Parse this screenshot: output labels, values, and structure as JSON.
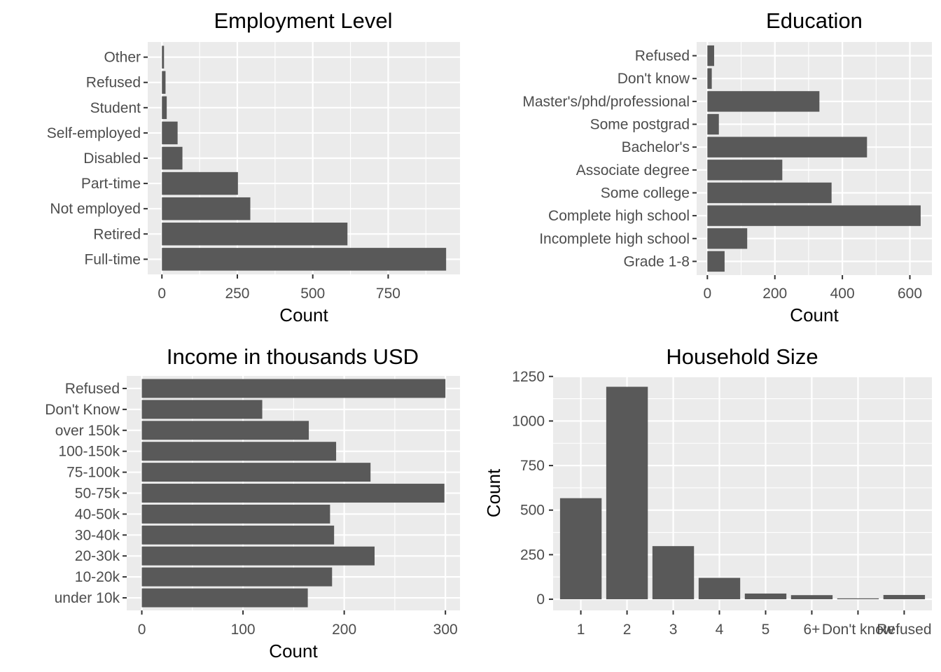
{
  "chart_data": [
    {
      "type": "bar",
      "orientation": "horizontal",
      "title": "Employment Level",
      "xlabel": "Count",
      "ylabel": "",
      "categories": [
        "Full-time",
        "Retired",
        "Not employed",
        "Part-time",
        "Disabled",
        "Self-employed",
        "Student",
        "Refused",
        "Other"
      ],
      "values": [
        942,
        615,
        293,
        252,
        68,
        52,
        16,
        12,
        7
      ],
      "xlim": [
        -47,
        988
      ],
      "ticks": [
        0,
        250,
        500,
        750
      ],
      "tick_labels": [
        "0",
        "250",
        "500",
        "750"
      ],
      "grid": true
    },
    {
      "type": "bar",
      "orientation": "horizontal",
      "title": "Education",
      "xlabel": "Count",
      "ylabel": "",
      "categories": [
        "Grade 1-8",
        "Incomplete high school",
        "Complete high school",
        "Some college",
        "Associate degree",
        "Bachelor's",
        "Some postgrad",
        "Master's/phd/professional",
        "Don't know",
        "Refused"
      ],
      "values": [
        51,
        118,
        632,
        368,
        222,
        473,
        34,
        332,
        13,
        20
      ],
      "xlim": [
        -31.8,
        665.3
      ],
      "ticks": [
        0,
        200,
        400,
        600
      ],
      "tick_labels": [
        "0",
        "200",
        "400",
        "600"
      ],
      "grid": true
    },
    {
      "type": "bar",
      "orientation": "horizontal",
      "title": "Income in thousands USD",
      "xlabel": "Count",
      "ylabel": "",
      "categories": [
        "under 10k",
        "10-20k",
        "20-30k",
        "30-40k",
        "40-50k",
        "50-75k",
        "75-100k",
        "100-150k",
        "over 150k",
        "Don't Know",
        "Refused"
      ],
      "values": [
        164,
        188,
        230,
        190,
        186,
        299,
        226,
        192,
        165,
        119,
        300
      ],
      "xlim": [
        -14.9,
        314.4
      ],
      "ticks": [
        0,
        100,
        200,
        300
      ],
      "tick_labels": [
        "0",
        "100",
        "200",
        "300"
      ],
      "grid": true
    },
    {
      "type": "bar",
      "orientation": "vertical",
      "title": "Household Size",
      "xlabel": "",
      "ylabel": "Count",
      "categories": [
        "1",
        "2",
        "3",
        "4",
        "5",
        "6+",
        "Don't know",
        "Refused"
      ],
      "values": [
        567,
        1192,
        298,
        120,
        32,
        23,
        5,
        24
      ],
      "ylim": [
        -62.6,
        1253
      ],
      "ticks": [
        0,
        250,
        500,
        750,
        1000,
        1250
      ],
      "tick_labels": [
        "0",
        "250",
        "500",
        "750",
        "1000",
        "1250"
      ],
      "grid": true
    }
  ]
}
